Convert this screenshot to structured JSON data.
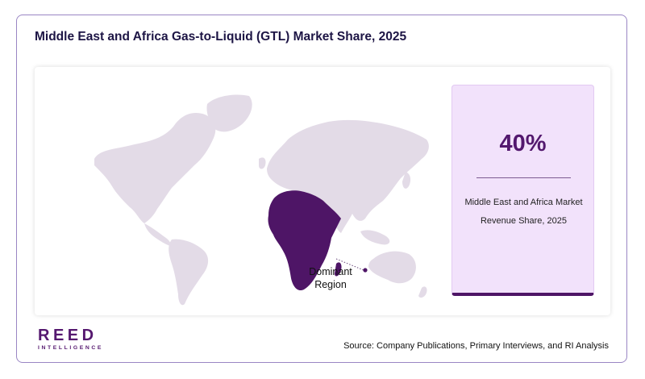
{
  "header": {
    "title": "Middle East and Africa Gas-to-Liquid (GTL) Market Share, 2025"
  },
  "chart_data": {
    "type": "map",
    "highlighted_region": "Middle East and Africa",
    "value": 40,
    "value_label": "40%",
    "metric_label": "Middle East and Africa Market Revenue Share, 2025",
    "annotation": "Dominant Region"
  },
  "stat_card": {
    "value": "40%",
    "label_line1": "Middle East and Africa Market",
    "label_line2": "Revenue Share, 2025"
  },
  "map": {
    "callout_line1": "Dominant",
    "callout_line2": "Region",
    "base_color": "#e3dbe7",
    "highlight_color": "#4e1566"
  },
  "logo": {
    "main": "REED",
    "sub": "INTELLIGENCE"
  },
  "footer": {
    "source": "Source: Company Publications, Primary Interviews, and RI Analysis"
  },
  "colors": {
    "accent": "#53186e",
    "card_background": "#f2e2fb",
    "title": "#1d1545",
    "border": "#9a86c4"
  }
}
